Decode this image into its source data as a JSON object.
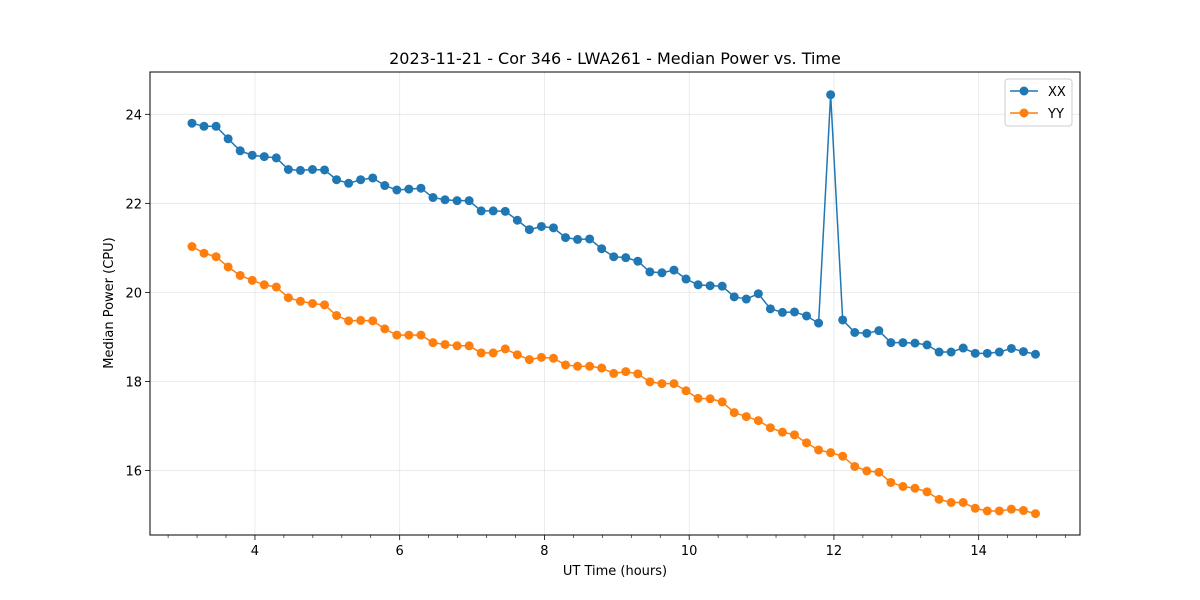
{
  "chart_data": {
    "type": "line",
    "title": "2023-11-21 - Cor 346 - LWA261 - Median Power vs. Time",
    "xlabel": "UT Time (hours)",
    "ylabel": "Median Power (CPU)",
    "xlim": [
      2.55,
      15.4
    ],
    "ylim": [
      14.55,
      24.95
    ],
    "xticks": [
      4,
      6,
      8,
      10,
      12,
      14
    ],
    "yticks": [
      16,
      18,
      20,
      22,
      24
    ],
    "x_minor_step": 0.4,
    "grid": true,
    "legend_position": "top-right",
    "x_start": 3.13,
    "x_step": 0.1665,
    "series": [
      {
        "name": "XX",
        "color": "#1f77b4",
        "marker": "circle",
        "values": [
          23.8,
          23.73,
          23.73,
          23.45,
          23.18,
          23.08,
          23.05,
          23.02,
          22.76,
          22.74,
          22.76,
          22.75,
          22.53,
          22.45,
          22.53,
          22.57,
          22.4,
          22.3,
          22.32,
          22.34,
          22.13,
          22.08,
          22.06,
          22.06,
          21.83,
          21.83,
          21.82,
          21.62,
          21.41,
          21.48,
          21.45,
          21.23,
          21.19,
          21.2,
          20.98,
          20.8,
          20.78,
          20.7,
          20.46,
          20.44,
          20.5,
          20.3,
          20.17,
          20.15,
          20.14,
          19.9,
          19.85,
          19.97,
          19.63,
          19.55,
          19.56,
          19.47,
          19.31,
          24.44,
          19.38,
          19.1,
          19.08,
          19.14,
          18.87,
          18.87,
          18.86,
          18.82,
          18.66,
          18.66,
          18.75,
          18.63,
          18.63,
          18.66,
          18.74,
          18.67,
          18.61
        ]
      },
      {
        "name": "YY",
        "color": "#ff7f0e",
        "marker": "circle",
        "values": [
          21.03,
          20.88,
          20.8,
          20.57,
          20.38,
          20.27,
          20.17,
          20.12,
          19.88,
          19.8,
          19.75,
          19.72,
          19.48,
          19.36,
          19.37,
          19.36,
          19.18,
          19.04,
          19.04,
          19.04,
          18.87,
          18.83,
          18.8,
          18.8,
          18.64,
          18.64,
          18.73,
          18.6,
          18.49,
          18.54,
          18.52,
          18.37,
          18.34,
          18.34,
          18.3,
          18.18,
          18.22,
          18.17,
          17.99,
          17.95,
          17.95,
          17.79,
          17.62,
          17.61,
          17.54,
          17.3,
          17.21,
          17.12,
          16.96,
          16.86,
          16.8,
          16.62,
          16.46,
          16.4,
          16.32,
          16.09,
          15.99,
          15.96,
          15.73,
          15.64,
          15.6,
          15.52,
          15.35,
          15.28,
          15.28,
          15.15,
          15.09,
          15.09,
          15.13,
          15.1,
          15.03
        ]
      }
    ]
  }
}
